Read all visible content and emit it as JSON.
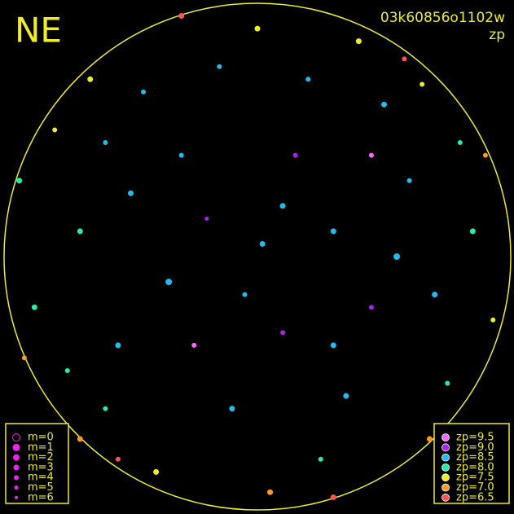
{
  "title": "NE",
  "frame_id": "03k60856o1102w",
  "color_key": "zp",
  "m_legend": [
    {
      "m": 0,
      "label": "m=0"
    },
    {
      "m": 1,
      "label": "m=1"
    },
    {
      "m": 2,
      "label": "m=2"
    },
    {
      "m": 3,
      "label": "m=3"
    },
    {
      "m": 4,
      "label": "m=4"
    },
    {
      "m": 5,
      "label": "m=5"
    },
    {
      "m": 6,
      "label": "m=6"
    }
  ],
  "zp_legend": [
    {
      "zp": 9.5,
      "label": "zp=9.5",
      "color": "#ff66ff"
    },
    {
      "zp": 9.0,
      "label": "zp=9.0",
      "color": "#aa22ee"
    },
    {
      "zp": 8.5,
      "label": "zp=8.5",
      "color": "#22bbee"
    },
    {
      "zp": 8.0,
      "label": "zp=8.0",
      "color": "#22eeaa"
    },
    {
      "zp": 7.5,
      "label": "zp=7.5",
      "color": "#eeee22"
    },
    {
      "zp": 7.0,
      "label": "zp=7.0",
      "color": "#ff9922"
    },
    {
      "zp": 6.5,
      "label": "zp=6.5",
      "color": "#ff5555"
    }
  ],
  "stars": {
    "x": [
      0.02,
      -0.3,
      0.45,
      -0.55,
      0.6,
      -0.1,
      0.2,
      -0.7,
      0.75,
      -0.2,
      0.3,
      -0.45,
      0.1,
      0.5,
      -0.6,
      0.85,
      -0.88,
      0.0,
      0.05,
      0.65,
      -0.66,
      0.68,
      -0.7,
      0.93,
      -0.94,
      0.35,
      -0.35,
      0.15,
      -0.15,
      0.4,
      -0.4,
      0.8,
      -0.8,
      0.25,
      -0.25,
      0.55,
      -0.5,
      0.1,
      -0.05,
      0.7,
      -0.75,
      0.45,
      -0.6,
      0.3,
      -0.3,
      0.3,
      0.9,
      -0.92,
      0.58,
      -0.55
    ],
    "y": [
      0.05,
      0.4,
      -0.2,
      -0.35,
      0.3,
      -0.6,
      0.7,
      0.1,
      -0.5,
      0.15,
      0.1,
      0.65,
      -0.3,
      0.6,
      -0.6,
      0.1,
      -0.2,
      0.9,
      -0.93,
      0.68,
      0.7,
      -0.72,
      -0.72,
      -0.25,
      0.3,
      -0.55,
      -0.1,
      0.4,
      0.75,
      0.85,
      -0.85,
      0.45,
      0.5,
      -0.8,
      -0.35,
      0.0,
      0.25,
      0.2,
      -0.15,
      -0.15,
      -0.45,
      0.4,
      0.45,
      -0.35,
      0.95,
      -0.95,
      0.4,
      -0.4,
      0.78,
      -0.8
    ],
    "zp": [
      8.5,
      8.5,
      9.0,
      8.5,
      8.5,
      8.5,
      8.5,
      8.0,
      8.0,
      9.0,
      8.5,
      8.5,
      9.0,
      8.5,
      8.0,
      8.0,
      8.0,
      7.5,
      7.0,
      7.5,
      7.5,
      7.0,
      7.0,
      7.5,
      8.0,
      8.5,
      8.5,
      9.0,
      8.5,
      7.5,
      7.5,
      8.0,
      7.5,
      8.0,
      9.5,
      8.5,
      8.5,
      8.5,
      8.5,
      8.5,
      8.0,
      9.5,
      8.5,
      8.5,
      6.5,
      6.5,
      7.0,
      7.0,
      6.5,
      6.5
    ],
    "m": [
      3,
      4,
      4,
      3,
      4,
      3,
      4,
      3,
      4,
      5,
      3,
      4,
      4,
      3,
      4,
      3,
      3,
      3,
      3,
      4,
      3,
      3,
      3,
      4,
      3,
      3,
      2,
      4,
      4,
      3,
      3,
      4,
      4,
      4,
      4,
      2,
      3,
      3,
      4,
      3,
      4,
      4,
      4,
      3,
      3,
      3,
      4,
      4,
      4,
      4
    ]
  }
}
